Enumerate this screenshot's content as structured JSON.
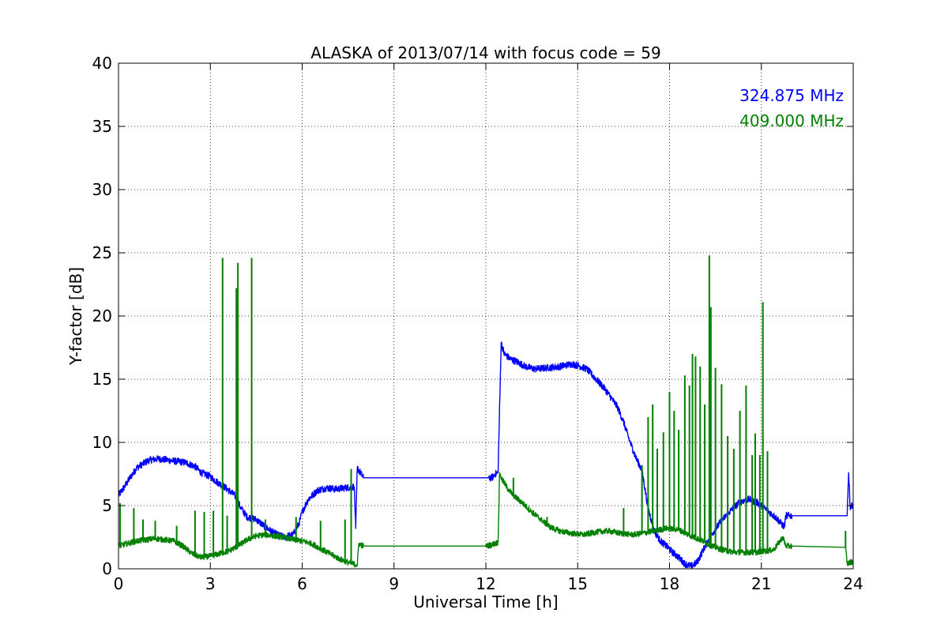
{
  "chart_data": {
    "type": "line",
    "title": "ALASKA of 2013/07/14 with focus code = 59",
    "xlabel": "Universal Time [h]",
    "ylabel": "Y-factor [dB]",
    "xlim": [
      0,
      24
    ],
    "ylim": [
      0,
      40
    ],
    "xticks": [
      0,
      3,
      6,
      9,
      12,
      15,
      18,
      21,
      24
    ],
    "yticks": [
      0,
      5,
      10,
      15,
      20,
      25,
      30,
      35,
      40
    ],
    "grid": true,
    "legend_position": "top-right",
    "series": [
      {
        "name": "324.875 MHz",
        "color": "#0000ff",
        "x": [
          0,
          0.2,
          0.4,
          0.6,
          0.8,
          1.0,
          1.3,
          1.6,
          1.9,
          2.2,
          2.5,
          2.7,
          3.0,
          3.2,
          3.5,
          3.8,
          4.0,
          4.2,
          4.5,
          4.8,
          5.1,
          5.4,
          5.7,
          5.9,
          6.0,
          6.2,
          6.5,
          6.8,
          7.1,
          7.4,
          7.7,
          7.75,
          7.8,
          8.0,
          12.1,
          12.2,
          12.3,
          12.4,
          12.5,
          12.6,
          12.8,
          13.0,
          13.3,
          13.6,
          14.0,
          14.4,
          14.8,
          15.0,
          15.3,
          15.6,
          15.9,
          16.1,
          16.3,
          16.5,
          16.7,
          16.9,
          17.1,
          17.3,
          17.5,
          17.7,
          17.9,
          18.1,
          18.3,
          18.5,
          18.7,
          18.9,
          19.1,
          19.4,
          19.7,
          20.0,
          20.3,
          20.6,
          20.9,
          21.2,
          21.5,
          21.75,
          21.8,
          22.0,
          23.8,
          23.85,
          23.9,
          24.0
        ],
        "y": [
          5.8,
          6.5,
          7.3,
          8.0,
          8.3,
          8.6,
          8.7,
          8.6,
          8.5,
          8.4,
          8.1,
          7.6,
          7.3,
          6.9,
          6.4,
          5.8,
          4.8,
          4.1,
          3.9,
          3.3,
          2.8,
          2.5,
          2.7,
          3.6,
          4.5,
          5.5,
          6.2,
          6.4,
          6.3,
          6.4,
          6.5,
          3.2,
          8.0,
          7.2,
          7.2,
          7.2,
          7.5,
          7.6,
          17.9,
          17.0,
          16.6,
          16.4,
          16.0,
          15.8,
          15.9,
          16.0,
          16.2,
          16.1,
          15.8,
          15.0,
          14.2,
          13.5,
          12.8,
          11.6,
          10.1,
          8.8,
          7.8,
          4.8,
          3.0,
          2.2,
          1.8,
          1.3,
          0.9,
          0.4,
          0.2,
          0.5,
          1.5,
          2.8,
          3.8,
          4.6,
          5.3,
          5.5,
          5.2,
          4.6,
          4.0,
          3.3,
          4.2,
          4.2,
          4.2,
          7.6,
          4.9,
          5.1
        ]
      },
      {
        "name": "409.000 MHz",
        "color": "#008000",
        "x": [
          0,
          0.3,
          0.6,
          0.9,
          1.2,
          1.5,
          1.8,
          2.1,
          2.4,
          2.7,
          3.0,
          3.3,
          3.6,
          3.9,
          4.2,
          4.5,
          4.8,
          5.1,
          5.4,
          5.7,
          6.0,
          6.3,
          6.6,
          6.9,
          7.2,
          7.5,
          7.8,
          7.85,
          8.0,
          12.0,
          12.2,
          12.4,
          12.45,
          12.5,
          12.7,
          12.9,
          13.2,
          13.5,
          13.8,
          14.1,
          14.4,
          14.8,
          15.2,
          15.6,
          16.0,
          16.4,
          16.8,
          17.1,
          17.5,
          17.9,
          18.3,
          18.7,
          19.0,
          19.3,
          19.6,
          19.9,
          20.2,
          20.5,
          20.8,
          21.1,
          21.4,
          21.7,
          21.8,
          22.0,
          23.75,
          23.8,
          24.0
        ],
        "y": [
          1.8,
          2.0,
          2.2,
          2.3,
          2.4,
          2.3,
          2.2,
          1.8,
          1.2,
          0.9,
          1.0,
          1.2,
          1.4,
          1.8,
          2.3,
          2.6,
          2.7,
          2.6,
          2.5,
          2.3,
          2.2,
          2.0,
          1.6,
          1.2,
          0.8,
          0.5,
          0.3,
          2.0,
          1.8,
          1.8,
          1.9,
          2.1,
          7.6,
          7.2,
          6.4,
          5.8,
          5.2,
          4.5,
          3.9,
          3.3,
          3.0,
          2.8,
          2.7,
          2.9,
          3.0,
          2.8,
          2.7,
          2.8,
          3.0,
          3.2,
          3.1,
          2.6,
          2.3,
          1.9,
          1.6,
          1.4,
          1.3,
          1.3,
          1.3,
          1.4,
          1.5,
          2.5,
          1.8,
          1.8,
          1.7,
          0.4,
          0.6
        ]
      }
    ],
    "spikes": [
      {
        "series": 1,
        "points": [
          [
            0.05,
            5.2
          ],
          [
            0.5,
            4.8
          ],
          [
            0.8,
            3.9
          ],
          [
            1.2,
            3.8
          ],
          [
            1.9,
            3.4
          ],
          [
            2.5,
            4.6
          ],
          [
            2.8,
            4.5
          ],
          [
            3.1,
            4.6
          ],
          [
            3.4,
            24.6
          ],
          [
            3.55,
            4.2
          ],
          [
            3.85,
            22.2
          ],
          [
            3.9,
            24.2
          ],
          [
            4.35,
            24.6
          ],
          [
            4.8,
            3.9
          ],
          [
            5.8,
            4.1
          ],
          [
            6.6,
            3.8
          ],
          [
            7.4,
            3.9
          ],
          [
            7.6,
            7.9
          ],
          [
            12.55,
            6.8
          ],
          [
            12.9,
            7.2
          ],
          [
            14.0,
            4.1
          ],
          [
            16.5,
            4.8
          ],
          [
            17.1,
            8.2
          ],
          [
            17.3,
            12.0
          ],
          [
            17.45,
            13.0
          ],
          [
            17.6,
            9.5
          ],
          [
            17.8,
            10.8
          ],
          [
            18.0,
            14.0
          ],
          [
            18.15,
            12.5
          ],
          [
            18.3,
            11.0
          ],
          [
            18.5,
            15.3
          ],
          [
            18.65,
            14.5
          ],
          [
            18.75,
            17.0
          ],
          [
            18.85,
            16.8
          ],
          [
            19.0,
            16.0
          ],
          [
            19.15,
            13.0
          ],
          [
            19.3,
            24.8
          ],
          [
            19.35,
            20.7
          ],
          [
            19.5,
            15.9
          ],
          [
            19.7,
            14.6
          ],
          [
            19.9,
            10.5
          ],
          [
            20.1,
            9.5
          ],
          [
            20.3,
            12.5
          ],
          [
            20.5,
            14.5
          ],
          [
            20.7,
            9.0
          ],
          [
            20.8,
            10.7
          ],
          [
            20.95,
            9.0
          ],
          [
            21.05,
            21.1
          ],
          [
            21.2,
            9.3
          ],
          [
            23.75,
            3.0
          ]
        ]
      }
    ]
  }
}
